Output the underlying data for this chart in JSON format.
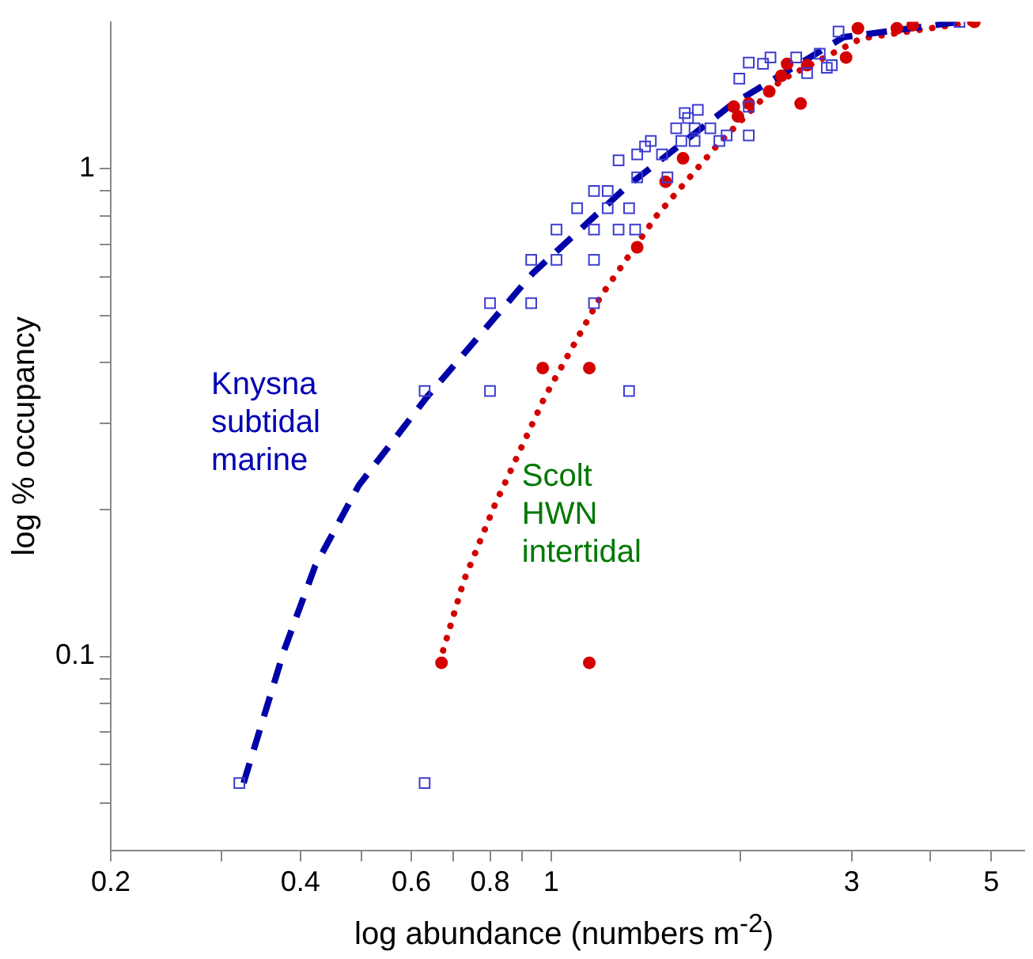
{
  "chart_data": {
    "type": "scatter",
    "xlabel": "log abundance (numbers m$^{-2}$)",
    "ylabel": "log % occupancy",
    "log": "xy",
    "grid": false,
    "legend": false,
    "xlim": [
      0.2,
      5.64
    ],
    "ylim": [
      0.04,
      2
    ],
    "xticks": [
      0.2,
      {
        "value": 0.3,
        "label": null
      },
      0.4,
      {
        "value": 0.5,
        "label": null
      },
      0.6,
      {
        "value": 0.7,
        "label": null
      },
      0.8,
      {
        "value": 0.9,
        "label": null
      },
      1,
      {
        "value": 2,
        "label": null
      },
      3,
      {
        "value": 4,
        "label": null
      },
      5
    ],
    "yticks": [
      {
        "value": 0.05,
        "label": null
      },
      {
        "value": 0.06,
        "label": null
      },
      {
        "value": 0.07,
        "label": null
      },
      {
        "value": 0.08,
        "label": null
      },
      {
        "value": 0.09,
        "label": null
      },
      0.1,
      {
        "value": 0.2,
        "label": null
      },
      {
        "value": 0.3,
        "label": null
      },
      {
        "value": 0.4,
        "label": null
      },
      {
        "value": 0.5,
        "label": null
      },
      {
        "value": 0.6,
        "label": null
      },
      {
        "value": 0.7,
        "label": null
      },
      {
        "value": 0.8,
        "label": null
      },
      {
        "value": 0.9,
        "label": null
      },
      1
    ],
    "series": [
      {
        "marker": "square",
        "color": "#3c3cd2",
        "x": [
          4.45,
          2.86,
          2.06,
          2.17,
          2.23,
          1.99,
          2.45,
          2.67,
          2.55,
          2.74,
          2.79,
          1.71,
          1.63,
          1.65,
          1.58,
          1.69,
          1.69,
          1.61,
          1.79,
          1.85,
          1.9,
          2.06,
          2.06,
          1.44,
          1.41,
          1.37,
          1.5,
          1.28,
          1.37,
          1.53,
          1.17,
          1.23,
          1.1,
          1.23,
          1.33,
          1.02,
          1.17,
          1.28,
          1.36,
          0.93,
          1.02,
          1.17,
          0.8,
          0.93,
          1.17,
          0.63,
          0.8,
          1.33,
          0.32,
          0.63
        ],
        "values": [
          2.0,
          1.91,
          1.65,
          1.64,
          1.69,
          1.53,
          1.69,
          1.72,
          1.57,
          1.61,
          1.63,
          1.32,
          1.3,
          1.27,
          1.21,
          1.21,
          1.14,
          1.14,
          1.21,
          1.14,
          1.17,
          1.17,
          1.34,
          1.14,
          1.11,
          1.07,
          1.07,
          1.04,
          0.96,
          0.96,
          0.9,
          0.9,
          0.83,
          0.83,
          0.83,
          0.75,
          0.75,
          0.75,
          0.75,
          0.65,
          0.65,
          0.65,
          0.53,
          0.53,
          0.53,
          0.35,
          0.35,
          0.35,
          0.055,
          0.055
        ]
      },
      {
        "marker": "circle",
        "color": "#d40000",
        "x": [
          4.7,
          3.75,
          3.54,
          3.07,
          2.94,
          2.55,
          2.37,
          2.32,
          2.49,
          2.22,
          2.06,
          1.98,
          1.95,
          1.62,
          1.52,
          1.37,
          0.97,
          1.15,
          0.67,
          1.15
        ],
        "values": [
          2.0,
          1.97,
          1.94,
          1.94,
          1.69,
          1.63,
          1.64,
          1.55,
          1.36,
          1.44,
          1.36,
          1.28,
          1.34,
          1.05,
          0.94,
          0.69,
          0.39,
          0.39,
          0.097,
          0.097
        ]
      },
      {
        "type": "line",
        "marker": "none",
        "line_style": "dashed",
        "color": "#0000a8",
        "x": [
          0.325,
          0.377,
          0.422,
          0.495,
          0.635,
          0.935,
          1.32,
          1.93,
          2.91,
          4.45
        ],
        "values": [
          0.055,
          0.103,
          0.153,
          0.224,
          0.34,
          0.61,
          0.92,
          1.35,
          1.86,
          2.0
        ]
      },
      {
        "type": "line",
        "marker": "none",
        "line_style": "dotted",
        "color": "#d40000",
        "x": [
          0.665,
          0.727,
          0.815,
          0.977,
          1.2,
          1.47,
          1.85,
          2.32,
          3.11,
          4.7
        ],
        "values": [
          0.097,
          0.143,
          0.205,
          0.34,
          0.548,
          0.8,
          1.13,
          1.52,
          1.85,
          2.0
        ]
      }
    ],
    "annotations": [
      "Knysna\nsubtidal\nmarine",
      "Scolt\nHWN\nintertidal"
    ]
  }
}
